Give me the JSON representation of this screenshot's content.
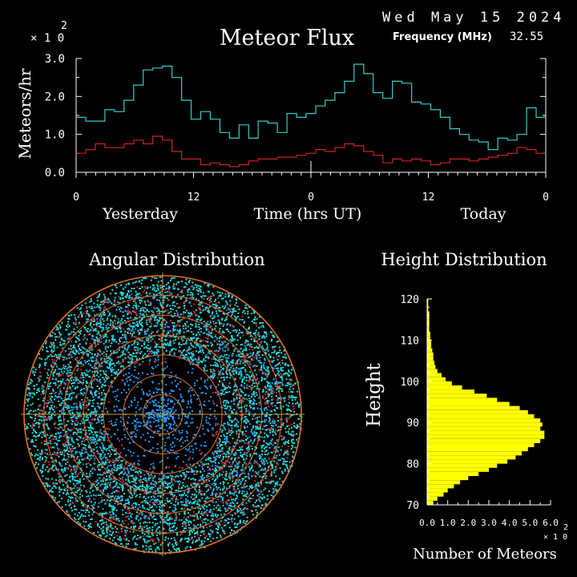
{
  "header": {
    "date": "Wed May 15 2024",
    "frequency_label": "Frequency (MHz)",
    "frequency_value": "32.55",
    "scale_note": "× 1 0",
    "scale_exp": "2"
  },
  "colors": {
    "background": "#000000",
    "series_total": "#33cccc",
    "series_other": "#cc2222",
    "height_bars": "#ffff00",
    "rings": "#e07020",
    "cross": "#c8a030",
    "points_cyan": "#22dddd",
    "points_blue": "#2299ff",
    "points_red": "#dd2222"
  },
  "chart_data": [
    {
      "type": "line",
      "title": "Meteor Flux",
      "ylabel": "Meteors/hr",
      "xlabel": "Time (hrs UT)",
      "y_multiplier": "×10^2",
      "ylim": [
        0,
        3.0
      ],
      "y_ticks": [
        "0.0",
        "1.0",
        "2.0",
        "3.0"
      ],
      "x_tick_labels": [
        "0",
        "12",
        "0",
        "12",
        "0"
      ],
      "day_labels": [
        "Yesterday",
        "Today"
      ],
      "x_hours_range": [
        0,
        48
      ],
      "grid": false,
      "step": true,
      "series": [
        {
          "values": [
            1.45,
            1.35,
            1.35,
            1.65,
            1.6,
            1.9,
            2.3,
            2.7,
            2.75,
            2.8,
            2.5,
            1.9,
            1.4,
            1.6,
            1.4,
            1.05,
            0.9,
            1.25,
            0.9,
            1.35,
            1.3,
            1.05,
            1.55,
            1.45,
            1.55,
            1.75,
            1.9,
            2.1,
            2.4,
            2.85,
            2.6,
            2.1,
            1.95,
            2.4,
            2.35,
            1.85,
            1.8,
            1.65,
            1.45,
            1.15,
            1.0,
            0.85,
            0.8,
            0.6,
            0.9,
            0.85,
            1.0,
            1.7,
            1.45
          ]
        },
        {
          "values": [
            0.5,
            0.6,
            0.75,
            0.65,
            0.65,
            0.75,
            0.85,
            0.75,
            0.95,
            0.85,
            0.55,
            0.35,
            0.35,
            0.2,
            0.25,
            0.2,
            0.15,
            0.2,
            0.3,
            0.35,
            0.35,
            0.4,
            0.4,
            0.45,
            0.5,
            0.6,
            0.55,
            0.65,
            0.75,
            0.7,
            0.55,
            0.45,
            0.25,
            0.35,
            0.3,
            0.35,
            0.3,
            0.2,
            0.25,
            0.35,
            0.35,
            0.3,
            0.35,
            0.4,
            0.45,
            0.5,
            0.65,
            0.6,
            0.5
          ]
        }
      ]
    },
    {
      "type": "scatter",
      "title": "Angular Distribution",
      "rings": 7,
      "notes": "polar sky map of meteor positions; cyan, blue and red point clouds"
    },
    {
      "type": "bar",
      "orientation": "horizontal",
      "title": "Height Distribution",
      "ylabel": "Height",
      "xlabel": "Number of Meteors",
      "x_multiplier": "×10^2",
      "ylim": [
        70,
        120
      ],
      "xlim": [
        0,
        6.0
      ],
      "y_ticks": [
        "70",
        "80",
        "90",
        "100",
        "110",
        "120"
      ],
      "x_ticks": [
        "0.0",
        "1.0",
        "2.0",
        "3.0",
        "4.0",
        "5.0",
        "6.0"
      ],
      "heights": [
        70,
        71,
        72,
        73,
        74,
        75,
        76,
        77,
        78,
        79,
        80,
        81,
        82,
        83,
        84,
        85,
        86,
        87,
        88,
        89,
        90,
        91,
        92,
        93,
        94,
        95,
        96,
        97,
        98,
        99,
        100,
        101,
        102,
        103,
        104,
        105,
        106,
        107,
        108,
        109,
        110,
        111,
        112,
        113,
        114,
        115,
        116,
        117,
        118,
        119
      ],
      "values": [
        0.3,
        0.5,
        0.8,
        1.0,
        1.3,
        1.6,
        2.0,
        2.5,
        3.0,
        3.4,
        3.9,
        4.3,
        4.6,
        4.9,
        5.2,
        5.5,
        5.7,
        5.7,
        5.5,
        5.6,
        5.5,
        5.2,
        4.9,
        4.5,
        4.0,
        3.4,
        2.9,
        2.3,
        1.7,
        1.2,
        0.9,
        0.7,
        0.5,
        0.4,
        0.35,
        0.3,
        0.3,
        0.25,
        0.2,
        0.2,
        0.15,
        0.15,
        0.1,
        0.1,
        0.1,
        0.1,
        0.1,
        0.05,
        0.05,
        0.05
      ]
    }
  ]
}
